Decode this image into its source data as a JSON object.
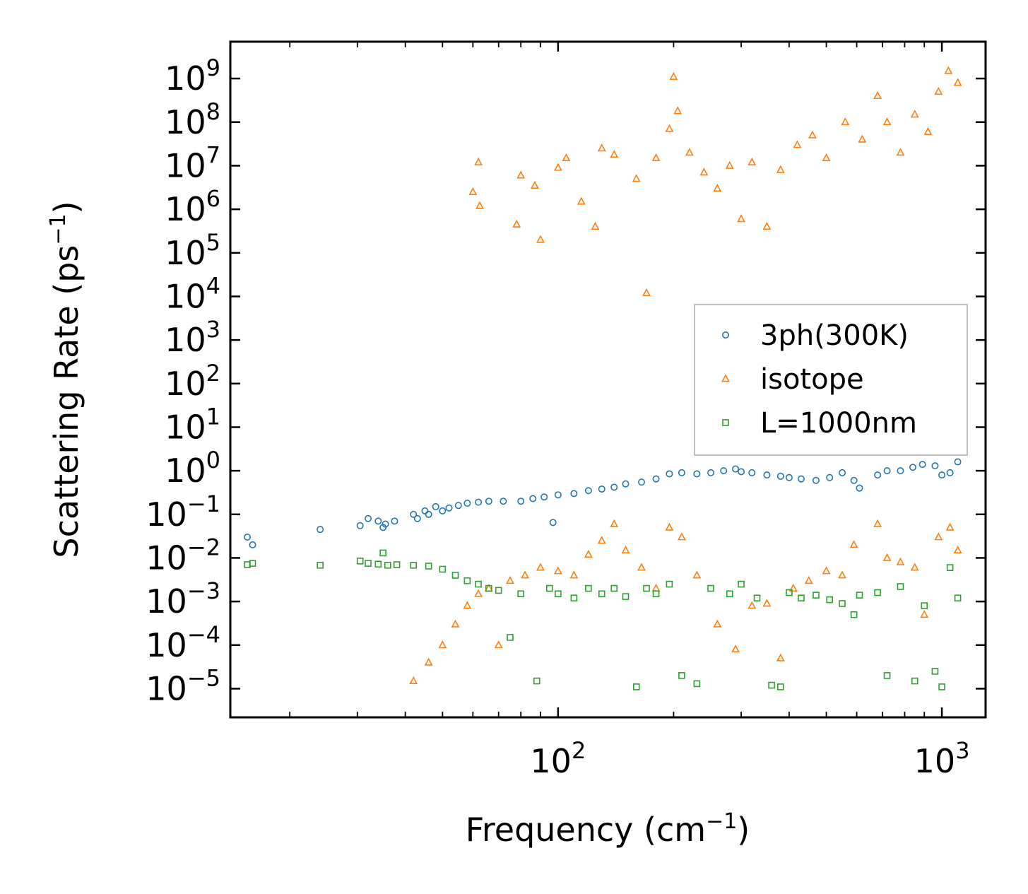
{
  "chart_data": {
    "type": "scatter",
    "x_scale": "log",
    "y_scale": "log",
    "xlabel": {
      "base": "Frequency (cm",
      "sup": "−1",
      "tail": ")"
    },
    "ylabel": {
      "base": "Scattering Rate (ps",
      "sup": "−1",
      "tail": ")"
    },
    "xlim": [
      14,
      1300
    ],
    "ylim": [
      2.2e-06,
      7000000000
    ],
    "x_ticks": [
      {
        "value": 100,
        "base": "10",
        "exp": "2"
      },
      {
        "value": 1000,
        "base": "10",
        "exp": "3"
      }
    ],
    "y_ticks": [
      {
        "value": 1e-05,
        "base": "10",
        "exp": "−5"
      },
      {
        "value": 0.0001,
        "base": "10",
        "exp": "−4"
      },
      {
        "value": 0.001,
        "base": "10",
        "exp": "−3"
      },
      {
        "value": 0.01,
        "base": "10",
        "exp": "−2"
      },
      {
        "value": 0.1,
        "base": "10",
        "exp": "−1"
      },
      {
        "value": 1.0,
        "base": "10",
        "exp": "0"
      },
      {
        "value": 10.0,
        "base": "10",
        "exp": "1"
      },
      {
        "value": 100.0,
        "base": "10",
        "exp": "2"
      },
      {
        "value": 1000.0,
        "base": "10",
        "exp": "3"
      },
      {
        "value": 10000.0,
        "base": "10",
        "exp": "4"
      },
      {
        "value": 100000.0,
        "base": "10",
        "exp": "5"
      },
      {
        "value": 1000000.0,
        "base": "10",
        "exp": "6"
      },
      {
        "value": 10000000.0,
        "base": "10",
        "exp": "7"
      },
      {
        "value": 100000000.0,
        "base": "10",
        "exp": "8"
      },
      {
        "value": 1000000000.0,
        "base": "10",
        "exp": "9"
      }
    ],
    "legend_position": "center-right",
    "series": [
      {
        "name": "3ph(300K)",
        "marker": "circle",
        "color": "#1f77b4",
        "points": [
          [
            15.5,
            0.03
          ],
          [
            16.0,
            0.02
          ],
          [
            24.0,
            0.045
          ],
          [
            30.5,
            0.055
          ],
          [
            32.0,
            0.08
          ],
          [
            34.0,
            0.07
          ],
          [
            35.0,
            0.05
          ],
          [
            35.5,
            0.06
          ],
          [
            37.5,
            0.07
          ],
          [
            42.0,
            0.1
          ],
          [
            43.0,
            0.08
          ],
          [
            45.0,
            0.12
          ],
          [
            46.0,
            0.1
          ],
          [
            48.0,
            0.15
          ],
          [
            50.0,
            0.12
          ],
          [
            52.0,
            0.14
          ],
          [
            55.0,
            0.16
          ],
          [
            58.0,
            0.18
          ],
          [
            62.0,
            0.19
          ],
          [
            66.0,
            0.2
          ],
          [
            72.0,
            0.2
          ],
          [
            80.0,
            0.2
          ],
          [
            86.0,
            0.23
          ],
          [
            92.0,
            0.25
          ],
          [
            97.0,
            0.065
          ],
          [
            100.0,
            0.28
          ],
          [
            110.0,
            0.3
          ],
          [
            120.0,
            0.35
          ],
          [
            130.0,
            0.38
          ],
          [
            140.0,
            0.42
          ],
          [
            150.0,
            0.5
          ],
          [
            165.0,
            0.55
          ],
          [
            180.0,
            0.65
          ],
          [
            195.0,
            0.85
          ],
          [
            210.0,
            0.9
          ],
          [
            230.0,
            0.85
          ],
          [
            250.0,
            0.9
          ],
          [
            270.0,
            1.0
          ],
          [
            290.0,
            1.1
          ],
          [
            300.0,
            0.95
          ],
          [
            320.0,
            0.9
          ],
          [
            350.0,
            0.8
          ],
          [
            380.0,
            0.75
          ],
          [
            400.0,
            0.7
          ],
          [
            430.0,
            0.65
          ],
          [
            470.0,
            0.6
          ],
          [
            510.0,
            0.7
          ],
          [
            550.0,
            0.9
          ],
          [
            590.0,
            0.6
          ],
          [
            610.0,
            0.4
          ],
          [
            680.0,
            0.8
          ],
          [
            720.0,
            1.0
          ],
          [
            780.0,
            1.0
          ],
          [
            840.0,
            1.2
          ],
          [
            890.0,
            1.4
          ],
          [
            960.0,
            1.3
          ],
          [
            1000.0,
            0.8
          ],
          [
            1050.0,
            0.9
          ],
          [
            1100.0,
            1.6
          ]
        ]
      },
      {
        "name": "isotope",
        "marker": "triangle",
        "color": "#ff7f0e",
        "points": [
          [
            42.0,
            1.5e-05
          ],
          [
            46.0,
            4e-05
          ],
          [
            50.0,
            0.0001
          ],
          [
            54.0,
            0.0003
          ],
          [
            58.0,
            0.0008
          ],
          [
            62.0,
            0.0015
          ],
          [
            66.0,
            0.002
          ],
          [
            70.0,
            0.0001
          ],
          [
            75.0,
            0.003
          ],
          [
            82.0,
            0.004
          ],
          [
            90.0,
            0.006
          ],
          [
            100.0,
            0.005
          ],
          [
            110.0,
            0.004
          ],
          [
            120.0,
            0.012
          ],
          [
            130.0,
            0.025
          ],
          [
            140.0,
            0.06
          ],
          [
            150.0,
            0.015
          ],
          [
            165.0,
            0.006
          ],
          [
            180.0,
            0.002
          ],
          [
            195.0,
            0.05
          ],
          [
            210.0,
            0.03
          ],
          [
            230.0,
            0.004
          ],
          [
            260.0,
            0.0003
          ],
          [
            290.0,
            8e-05
          ],
          [
            320.0,
            0.0008
          ],
          [
            350.0,
            0.0009
          ],
          [
            380.0,
            5e-05
          ],
          [
            410.0,
            0.002
          ],
          [
            450.0,
            0.003
          ],
          [
            500.0,
            0.005
          ],
          [
            550.0,
            0.004
          ],
          [
            590.0,
            0.02
          ],
          [
            680.0,
            0.06
          ],
          [
            720.0,
            0.01
          ],
          [
            780.0,
            0.008
          ],
          [
            850.0,
            0.006
          ],
          [
            900.0,
            0.0005
          ],
          [
            980.0,
            0.03
          ],
          [
            1050.0,
            0.05
          ],
          [
            1100.0,
            0.015
          ],
          [
            62.0,
            12000000
          ],
          [
            60.0,
            2500000
          ],
          [
            62.5,
            1200000
          ],
          [
            78.0,
            450000
          ],
          [
            80.0,
            6000000
          ],
          [
            87.0,
            3500000
          ],
          [
            90.0,
            200000
          ],
          [
            100.0,
            9000000
          ],
          [
            105.0,
            15000000
          ],
          [
            115.0,
            1500000
          ],
          [
            125.0,
            400000
          ],
          [
            130.0,
            25000000
          ],
          [
            140.0,
            18000000
          ],
          [
            160.0,
            5000000
          ],
          [
            170.0,
            12000
          ],
          [
            180.0,
            15000000
          ],
          [
            195.0,
            70000000
          ],
          [
            200.0,
            1100000000
          ],
          [
            205.0,
            180000000
          ],
          [
            220.0,
            20000000
          ],
          [
            240.0,
            7000000
          ],
          [
            260.0,
            3000000
          ],
          [
            280.0,
            10000000
          ],
          [
            300.0,
            600000
          ],
          [
            320.0,
            12000000
          ],
          [
            350.0,
            400000
          ],
          [
            380.0,
            8000000
          ],
          [
            420.0,
            30000000
          ],
          [
            460.0,
            50000000
          ],
          [
            500.0,
            15000000
          ],
          [
            560.0,
            100000000
          ],
          [
            620.0,
            40000000
          ],
          [
            680.0,
            400000000
          ],
          [
            720.0,
            100000000
          ],
          [
            780.0,
            20000000
          ],
          [
            850.0,
            150000000
          ],
          [
            920.0,
            60000000
          ],
          [
            980.0,
            500000000
          ],
          [
            1040.0,
            1500000000
          ],
          [
            1100.0,
            800000000
          ]
        ]
      },
      {
        "name": "L=1000nm",
        "marker": "square",
        "color": "#2ca02c",
        "points": [
          [
            15.5,
            0.007
          ],
          [
            16.0,
            0.0075
          ],
          [
            24.0,
            0.0068
          ],
          [
            30.5,
            0.0085
          ],
          [
            32.0,
            0.0075
          ],
          [
            34.0,
            0.0072
          ],
          [
            35.0,
            0.013
          ],
          [
            36.0,
            0.0068
          ],
          [
            38.0,
            0.007
          ],
          [
            42.0,
            0.0068
          ],
          [
            46.0,
            0.0065
          ],
          [
            50.0,
            0.0055
          ],
          [
            54.0,
            0.004
          ],
          [
            58.0,
            0.003
          ],
          [
            62.0,
            0.0025
          ],
          [
            66.0,
            0.002
          ],
          [
            70.0,
            0.0018
          ],
          [
            75.0,
            0.00015
          ],
          [
            80.0,
            0.0015
          ],
          [
            88.0,
            1.5e-05
          ],
          [
            95.0,
            0.002
          ],
          [
            100.0,
            0.0015
          ],
          [
            110.0,
            0.0012
          ],
          [
            120.0,
            0.002
          ],
          [
            130.0,
            0.0015
          ],
          [
            140.0,
            0.002
          ],
          [
            150.0,
            0.0013
          ],
          [
            160.0,
            1.1e-05
          ],
          [
            170.0,
            0.002
          ],
          [
            180.0,
            0.0015
          ],
          [
            195.0,
            0.0025
          ],
          [
            210.0,
            2e-05
          ],
          [
            230.0,
            1.3e-05
          ],
          [
            250.0,
            0.002
          ],
          [
            280.0,
            0.0015
          ],
          [
            300.0,
            0.0025
          ],
          [
            330.0,
            0.0012
          ],
          [
            360.0,
            1.2e-05
          ],
          [
            380.0,
            1.1e-05
          ],
          [
            400.0,
            0.0016
          ],
          [
            430.0,
            0.0012
          ],
          [
            470.0,
            0.0014
          ],
          [
            510.0,
            0.0011
          ],
          [
            550.0,
            0.0009
          ],
          [
            590.0,
            0.0005
          ],
          [
            610.0,
            0.0014
          ],
          [
            680.0,
            0.0016
          ],
          [
            720.0,
            2e-05
          ],
          [
            780.0,
            0.0022
          ],
          [
            850.0,
            1.5e-05
          ],
          [
            900.0,
            0.0008
          ],
          [
            960.0,
            2.5e-05
          ],
          [
            1000.0,
            1.1e-05
          ],
          [
            1050.0,
            0.006
          ],
          [
            1100.0,
            0.0012
          ]
        ]
      }
    ]
  }
}
